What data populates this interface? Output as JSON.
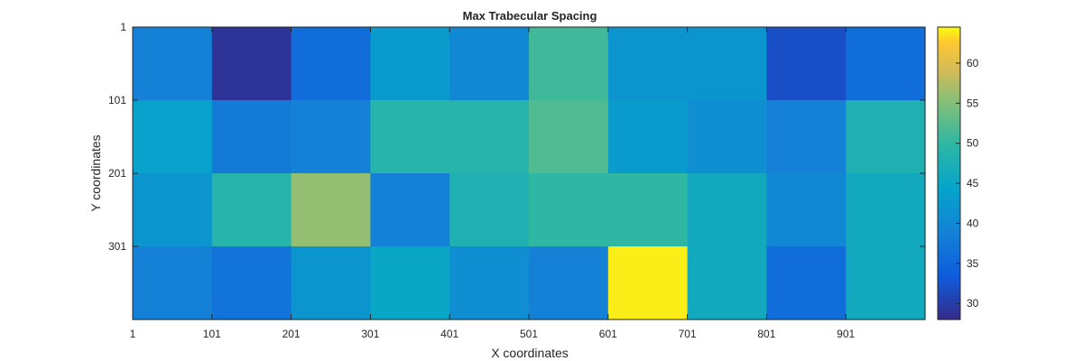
{
  "chart_data": {
    "type": "heatmap",
    "title": "Max Trabecular Spacing",
    "xlabel": "X coordinates",
    "ylabel": "Y coordinates",
    "x_tick_labels": [
      "1",
      "101",
      "201",
      "301",
      "401",
      "501",
      "601",
      "701",
      "801",
      "901"
    ],
    "y_tick_labels": [
      "1",
      "101",
      "201",
      "301"
    ],
    "x_edges": [
      1,
      101,
      201,
      301,
      401,
      501,
      601,
      701,
      801,
      901,
      1001
    ],
    "y_edges": [
      1,
      101,
      201,
      301,
      401
    ],
    "values": [
      [
        39,
        29,
        36,
        43,
        40,
        51,
        42,
        42,
        32,
        36
      ],
      [
        44,
        38,
        39,
        49,
        49,
        52,
        43,
        41,
        39,
        48
      ],
      [
        42,
        49,
        56,
        39,
        48,
        50,
        50,
        46,
        40,
        46
      ],
      [
        39,
        37,
        42,
        45,
        41,
        39,
        64,
        46,
        36,
        46
      ]
    ],
    "colorbar": {
      "min": 28,
      "max": 64.5,
      "ticks": [
        30,
        35,
        40,
        45,
        50,
        55,
        60
      ],
      "tick_labels": [
        "30",
        "35",
        "40",
        "45",
        "50",
        "55",
        "60"
      ],
      "colormap": "parula"
    },
    "grid": false,
    "legend": "none"
  }
}
